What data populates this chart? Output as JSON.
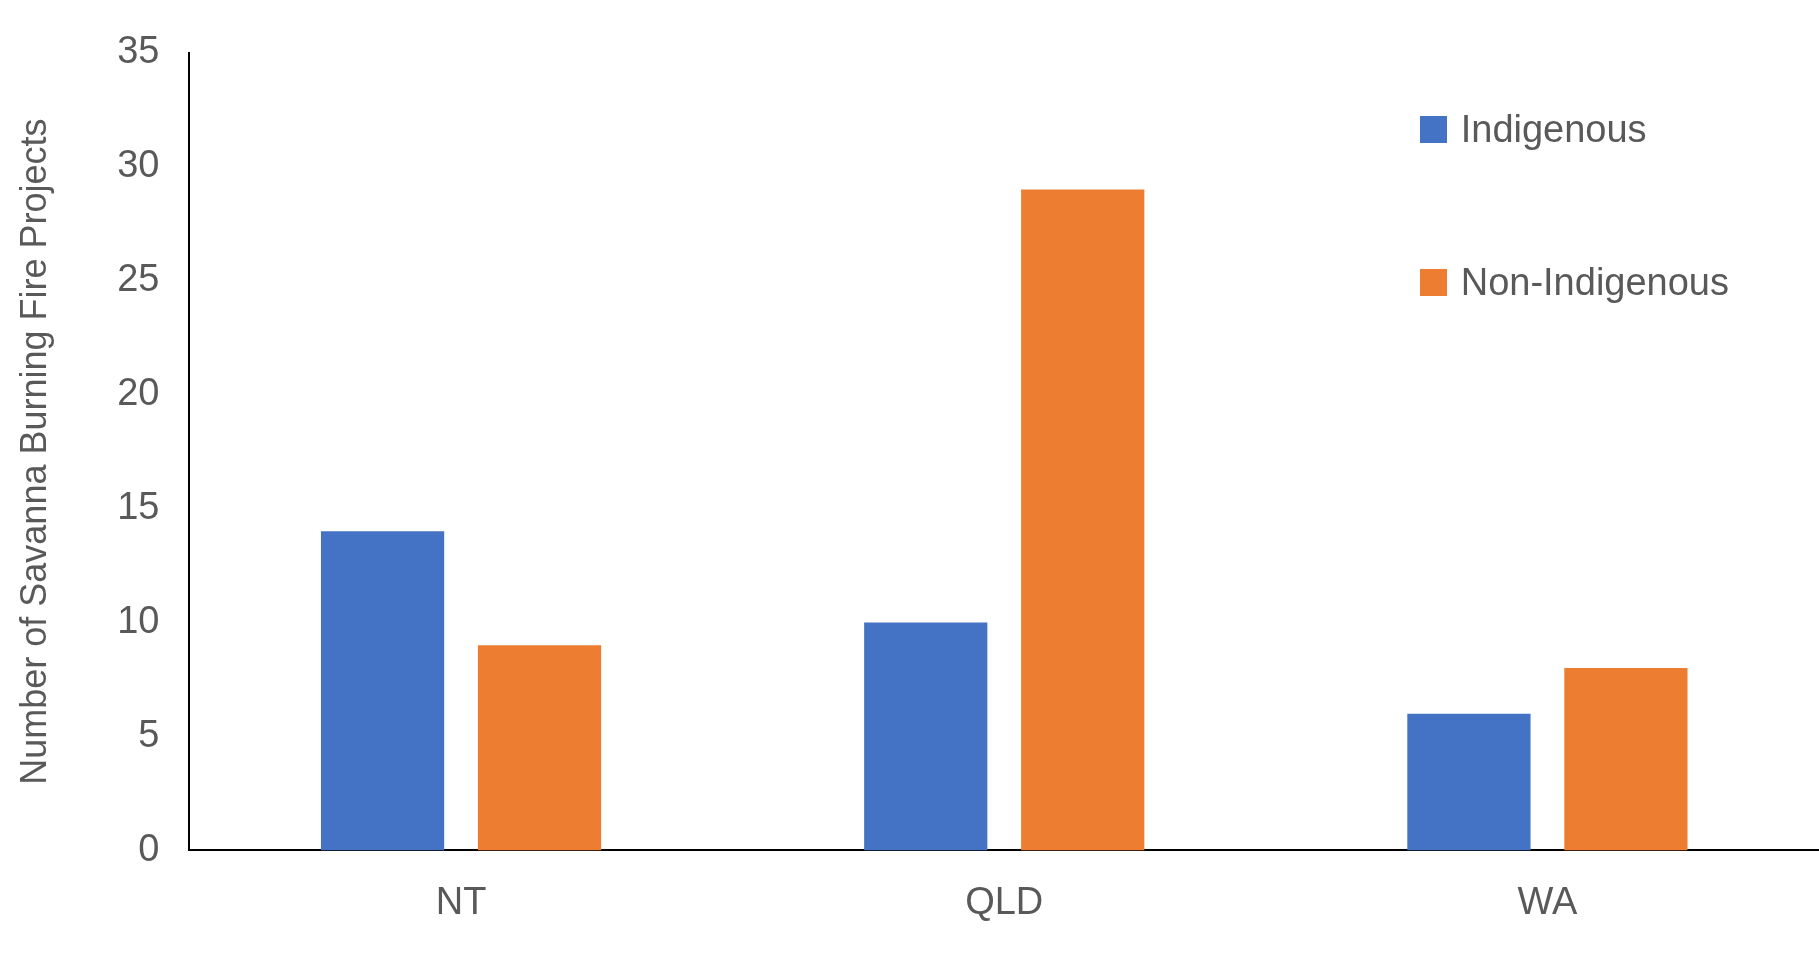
{
  "chart_data": {
    "type": "bar",
    "ylabel": "Number of Savanna Burning Fire Projects",
    "categories": [
      "NT",
      "QLD",
      "WA"
    ],
    "series": [
      {
        "name": "Indigenous",
        "color": "#4472c4",
        "values": [
          14,
          10,
          6
        ]
      },
      {
        "name": "Non-Indigenous",
        "color": "#ed7d31",
        "values": [
          9,
          29,
          8
        ]
      }
    ],
    "ylim": [
      0,
      35
    ],
    "yticks": [
      0,
      5,
      10,
      15,
      20,
      25,
      30,
      35
    ],
    "grid": false,
    "legend": "top right"
  }
}
